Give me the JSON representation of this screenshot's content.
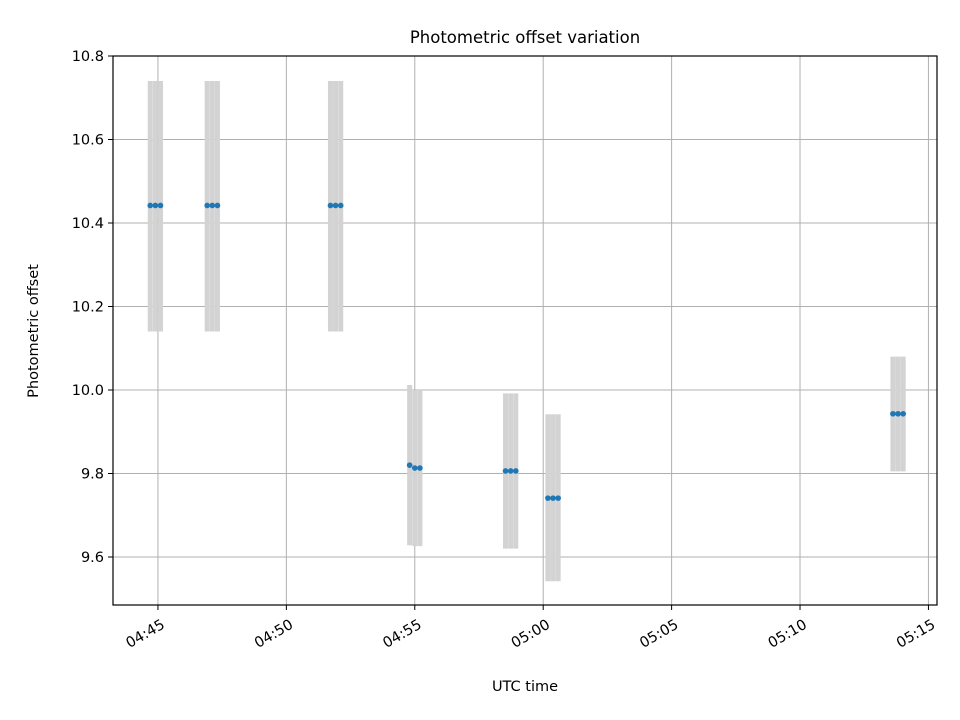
{
  "chart_data": {
    "type": "scatter",
    "title": "Photometric offset variation",
    "xlabel": "UTC time",
    "ylabel": "Photometric offset",
    "x_ticks": [
      "04:45",
      "04:50",
      "04:55",
      "05:00",
      "05:05",
      "05:10",
      "05:15"
    ],
    "y_ticks": [
      "9.6",
      "9.8",
      "10.0",
      "10.2",
      "10.4",
      "10.6",
      "10.8"
    ],
    "xlim": [
      "04:43:15",
      "05:15:20"
    ],
    "ylim": [
      9.485,
      10.8
    ],
    "grid": true,
    "points": [
      {
        "time": "04:44:42",
        "value": 10.442,
        "err_low": 10.14,
        "err_high": 10.74
      },
      {
        "time": "04:44:54",
        "value": 10.442,
        "err_low": 10.14,
        "err_high": 10.74
      },
      {
        "time": "04:45:06",
        "value": 10.442,
        "err_low": 10.14,
        "err_high": 10.74
      },
      {
        "time": "04:46:55",
        "value": 10.442,
        "err_low": 10.14,
        "err_high": 10.74
      },
      {
        "time": "04:47:07",
        "value": 10.442,
        "err_low": 10.14,
        "err_high": 10.74
      },
      {
        "time": "04:47:19",
        "value": 10.442,
        "err_low": 10.14,
        "err_high": 10.74
      },
      {
        "time": "04:51:43",
        "value": 10.442,
        "err_low": 10.14,
        "err_high": 10.74
      },
      {
        "time": "04:51:55",
        "value": 10.442,
        "err_low": 10.14,
        "err_high": 10.74
      },
      {
        "time": "04:52:07",
        "value": 10.442,
        "err_low": 10.14,
        "err_high": 10.74
      },
      {
        "time": "04:54:48",
        "value": 9.82,
        "err_low": 9.628,
        "err_high": 10.012
      },
      {
        "time": "04:55:00",
        "value": 9.813,
        "err_low": 9.626,
        "err_high": 10.0
      },
      {
        "time": "04:55:12",
        "value": 9.813,
        "err_low": 9.626,
        "err_high": 10.0
      },
      {
        "time": "04:58:32",
        "value": 9.806,
        "err_low": 9.62,
        "err_high": 9.992
      },
      {
        "time": "04:58:44",
        "value": 9.806,
        "err_low": 9.62,
        "err_high": 9.992
      },
      {
        "time": "04:58:56",
        "value": 9.806,
        "err_low": 9.62,
        "err_high": 9.992
      },
      {
        "time": "05:00:11",
        "value": 9.741,
        "err_low": 9.542,
        "err_high": 9.942
      },
      {
        "time": "05:00:23",
        "value": 9.741,
        "err_low": 9.542,
        "err_high": 9.942
      },
      {
        "time": "05:00:35",
        "value": 9.741,
        "err_low": 9.542,
        "err_high": 9.942
      },
      {
        "time": "05:13:37",
        "value": 9.943,
        "err_low": 9.805,
        "err_high": 10.08
      },
      {
        "time": "05:13:49",
        "value": 9.943,
        "err_low": 9.805,
        "err_high": 10.08
      },
      {
        "time": "05:14:01",
        "value": 9.943,
        "err_low": 9.805,
        "err_high": 10.08
      }
    ],
    "colors": {
      "marker": "#1f77b4",
      "errorbar": "#d3d3d3",
      "grid": "#b0b0b0",
      "axes": "#000000"
    }
  }
}
